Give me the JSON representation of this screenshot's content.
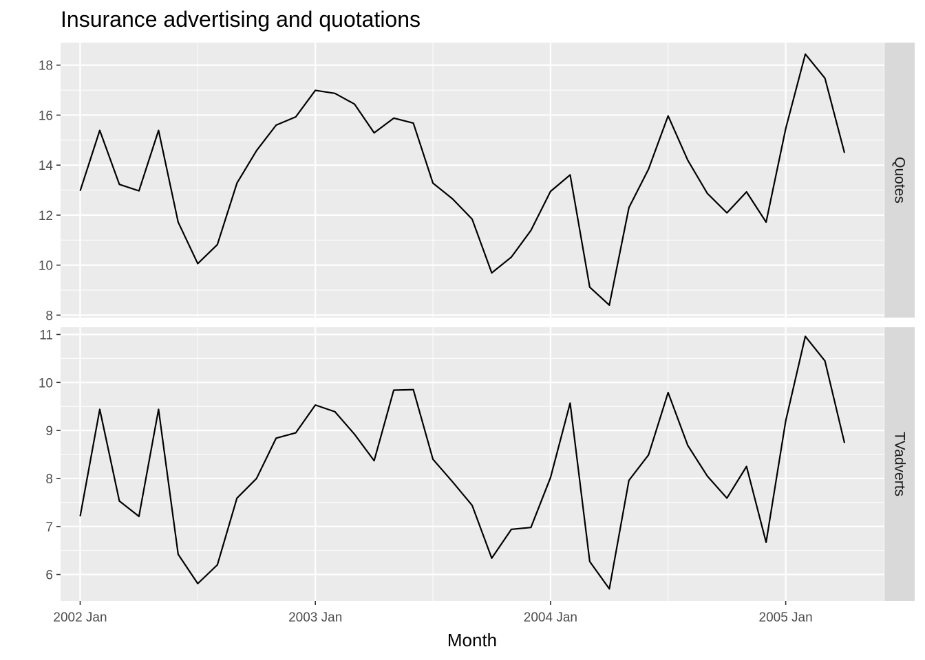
{
  "chart_data": {
    "type": "line",
    "title": "Insurance advertising and quotations",
    "xlabel": "Month",
    "ylabel": "",
    "x": [
      "2002 Jan",
      "2002 Feb",
      "2002 Mar",
      "2002 Apr",
      "2002 May",
      "2002 Jun",
      "2002 Jul",
      "2002 Aug",
      "2002 Sep",
      "2002 Oct",
      "2002 Nov",
      "2002 Dec",
      "2003 Jan",
      "2003 Feb",
      "2003 Mar",
      "2003 Apr",
      "2003 May",
      "2003 Jun",
      "2003 Jul",
      "2003 Aug",
      "2003 Sep",
      "2003 Oct",
      "2003 Nov",
      "2003 Dec",
      "2004 Jan",
      "2004 Feb",
      "2004 Mar",
      "2004 Apr",
      "2004 May",
      "2004 Jun",
      "2004 Jul",
      "2004 Aug",
      "2004 Sep",
      "2004 Oct",
      "2004 Nov",
      "2004 Dec",
      "2005 Jan",
      "2005 Feb",
      "2005 Mar",
      "2005 Apr"
    ],
    "x_ticks": [
      "2002 Jan",
      "2003 Jan",
      "2004 Jan",
      "2005 Jan"
    ],
    "x_range": [
      "2001 Dec",
      "2005 Jun"
    ],
    "grid": true,
    "panels": [
      {
        "name": "Quotes",
        "ylim": [
          7.9,
          18.9
        ],
        "y_ticks": [
          8,
          10,
          12,
          14,
          16,
          18
        ],
        "values": [
          12.97,
          15.39,
          13.23,
          12.97,
          15.39,
          11.72,
          10.06,
          10.82,
          13.28,
          14.58,
          15.6,
          15.93,
          16.99,
          16.87,
          16.44,
          15.29,
          15.88,
          15.68,
          13.28,
          12.65,
          11.84,
          9.69,
          10.32,
          11.39,
          12.95,
          13.61,
          9.12,
          8.4,
          12.3,
          13.84,
          15.97,
          14.2,
          12.87,
          12.09,
          12.93,
          11.72,
          15.46,
          18.44,
          17.48,
          14.49
        ]
      },
      {
        "name": "TVadverts",
        "ylim": [
          5.45,
          11.15
        ],
        "y_ticks": [
          6,
          7,
          8,
          9,
          10,
          11
        ],
        "values": [
          7.21,
          9.44,
          7.53,
          7.21,
          9.44,
          6.42,
          5.81,
          6.2,
          7.59,
          8.0,
          8.84,
          8.95,
          9.53,
          9.39,
          8.92,
          8.37,
          9.84,
          9.85,
          8.4,
          7.93,
          7.44,
          6.34,
          6.94,
          6.98,
          8.02,
          9.57,
          6.27,
          5.7,
          7.96,
          8.49,
          9.79,
          8.69,
          8.05,
          7.59,
          8.25,
          6.67,
          9.2,
          10.96,
          10.45,
          8.74
        ]
      }
    ],
    "colors": {
      "line": "#000000",
      "panel_bg": "#ebebeb",
      "grid": "#ffffff",
      "strip_bg": "#d9d9d9"
    }
  }
}
